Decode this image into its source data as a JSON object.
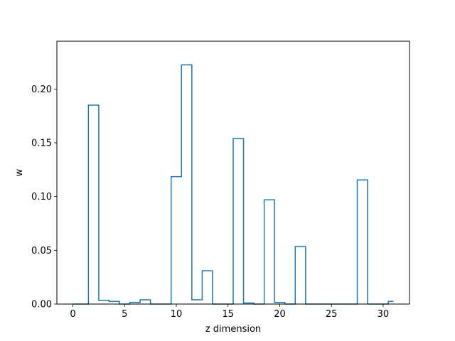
{
  "chart_data": {
    "type": "step",
    "title": "",
    "xlabel": "z dimension",
    "ylabel": "w",
    "xlim": [
      -1.55,
      32.55
    ],
    "ylim": [
      0,
      0.2445
    ],
    "xticks": [
      0,
      5,
      10,
      15,
      20,
      25,
      30
    ],
    "yticks": [
      0.0,
      0.05,
      0.1,
      0.15,
      0.2
    ],
    "ytick_labels": [
      "0.00",
      "0.05",
      "0.10",
      "0.15",
      "0.20"
    ],
    "grid": false,
    "color": "#1f77b4",
    "x": [
      0,
      1,
      2,
      3,
      4,
      5,
      6,
      7,
      8,
      9,
      10,
      11,
      12,
      13,
      14,
      15,
      16,
      17,
      18,
      19,
      20,
      21,
      22,
      23,
      24,
      25,
      26,
      27,
      28,
      29,
      30,
      31
    ],
    "values": [
      0.0,
      0.0,
      0.185,
      0.0035,
      0.0025,
      0.0,
      0.0015,
      0.004,
      0.0,
      0.0,
      0.1185,
      0.2225,
      0.004,
      0.031,
      0.0,
      0.0,
      0.154,
      0.001,
      0.0,
      0.097,
      0.0015,
      0.0,
      0.0535,
      0.0,
      0.0,
      0.0,
      0.0,
      0.0,
      0.1155,
      0.0,
      0.0,
      0.0025
    ]
  }
}
